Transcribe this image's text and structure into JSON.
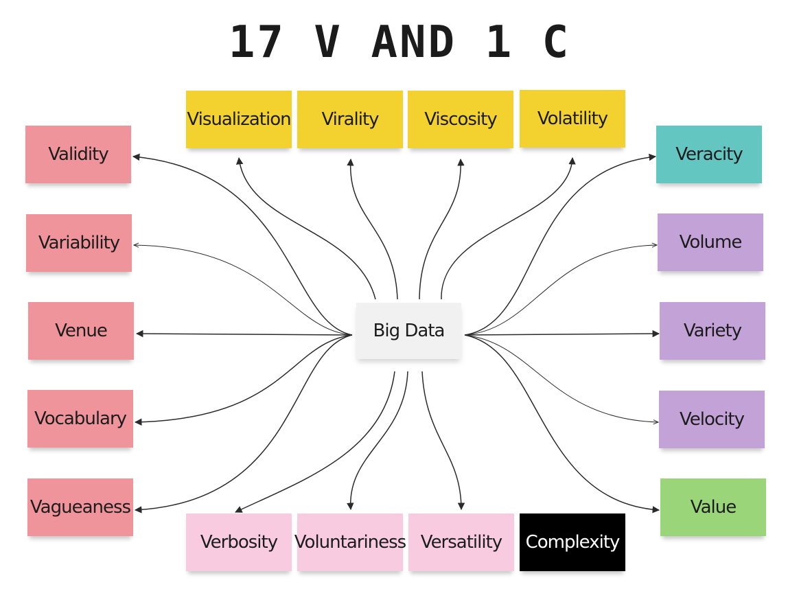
{
  "title": "17 V AND 1 C",
  "center": {
    "label": "Big Data",
    "color": "#f1f1f1"
  },
  "nodes": {
    "visualization": {
      "label": "Visualization",
      "color": "#f3d12f"
    },
    "virality": {
      "label": "Virality",
      "color": "#f3d12f"
    },
    "viscosity": {
      "label": "Viscosity",
      "color": "#f3d12f"
    },
    "volatility": {
      "label": "Volatility",
      "color": "#f3d12f"
    },
    "validity": {
      "label": "Validity",
      "color": "#f0949c"
    },
    "variability": {
      "label": "Variability",
      "color": "#f0949c"
    },
    "venue": {
      "label": "Venue",
      "color": "#f0949c"
    },
    "vocabulary": {
      "label": "Vocabulary",
      "color": "#f0949c"
    },
    "vagueaness": {
      "label": "Vagueaness",
      "color": "#f0949c"
    },
    "veracity": {
      "label": "Veracity",
      "color": "#64c6c1"
    },
    "volume": {
      "label": "Volume",
      "color": "#c3a2d7"
    },
    "variety": {
      "label": "Variety",
      "color": "#c3a2d7"
    },
    "velocity": {
      "label": "Velocity",
      "color": "#c3a2d7"
    },
    "value": {
      "label": "Value",
      "color": "#9bd57a"
    },
    "verbosity": {
      "label": "Verbosity",
      "color": "#f8cbe0"
    },
    "voluntariness": {
      "label": "Voluntariness",
      "color": "#f8cbe0"
    },
    "versatility": {
      "label": "Versatility",
      "color": "#f8cbe0"
    },
    "complexity": {
      "label": "Complexity",
      "color": "#000000",
      "text_color": "#ffffff"
    }
  }
}
